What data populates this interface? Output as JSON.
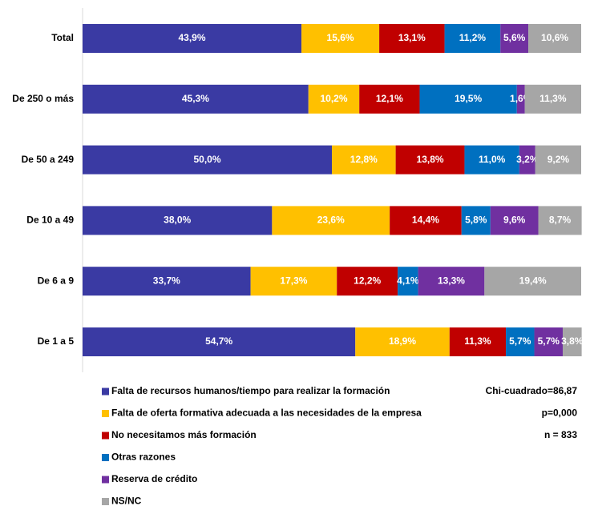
{
  "chart_data": {
    "type": "stacked_barh",
    "categories": [
      "Total",
      "De 250 o más",
      "De 50 a 249",
      "De 10 a 49",
      "De 6 a 9",
      "De 1 a 5"
    ],
    "xlim": [
      0,
      100
    ],
    "series": [
      {
        "name": "Falta de recursos humanos/tiempo para realizar la formación",
        "color": "#3a3aa3",
        "values": [
          43.9,
          45.3,
          50.0,
          38.0,
          33.7,
          54.7
        ],
        "value_labels": [
          "43,9%",
          "45,3%",
          "50,0%",
          "38,0%",
          "33,7%",
          "54,7%"
        ]
      },
      {
        "name": "Falta de oferta formativa adecuada a las necesidades de la empresa",
        "color": "#ffc000",
        "values": [
          15.6,
          10.2,
          12.8,
          23.6,
          17.3,
          18.9
        ],
        "value_labels": [
          "15,6%",
          "10,2%",
          "12,8%",
          "23,6%",
          "17,3%",
          "18,9%"
        ]
      },
      {
        "name": "No necesitamos más formación",
        "color": "#c00000",
        "values": [
          13.1,
          12.1,
          13.8,
          14.4,
          12.2,
          11.3
        ],
        "value_labels": [
          "13,1%",
          "12,1%",
          "13,8%",
          "14,4%",
          "12,2%",
          "11,3%"
        ]
      },
      {
        "name": "Otras razones",
        "color": "#0070c0",
        "values": [
          11.2,
          19.5,
          11.0,
          5.8,
          4.1,
          5.7
        ],
        "value_labels": [
          "11,2%",
          "19,5%",
          "11,0%",
          "5,8%",
          "4,1%",
          "5,7%"
        ]
      },
      {
        "name": "Reserva de crédito",
        "color": "#7030a0",
        "values": [
          5.6,
          1.6,
          3.2,
          9.6,
          13.3,
          5.7
        ],
        "value_labels": [
          "5,6%",
          "1,6%",
          "3,2%",
          "9,6%",
          "13,3%",
          "5,7%"
        ]
      },
      {
        "name": "NS/NC",
        "color": "#a6a6a6",
        "values": [
          10.6,
          11.3,
          9.2,
          8.7,
          19.4,
          3.8
        ],
        "value_labels": [
          "10,6%",
          "11,3%",
          "9,2%",
          "8,7%",
          "19,4%",
          "3,8%"
        ]
      }
    ],
    "annotations": [
      "Chi-cuadrado=86,87",
      "p=0,000",
      "n = 833"
    ]
  }
}
